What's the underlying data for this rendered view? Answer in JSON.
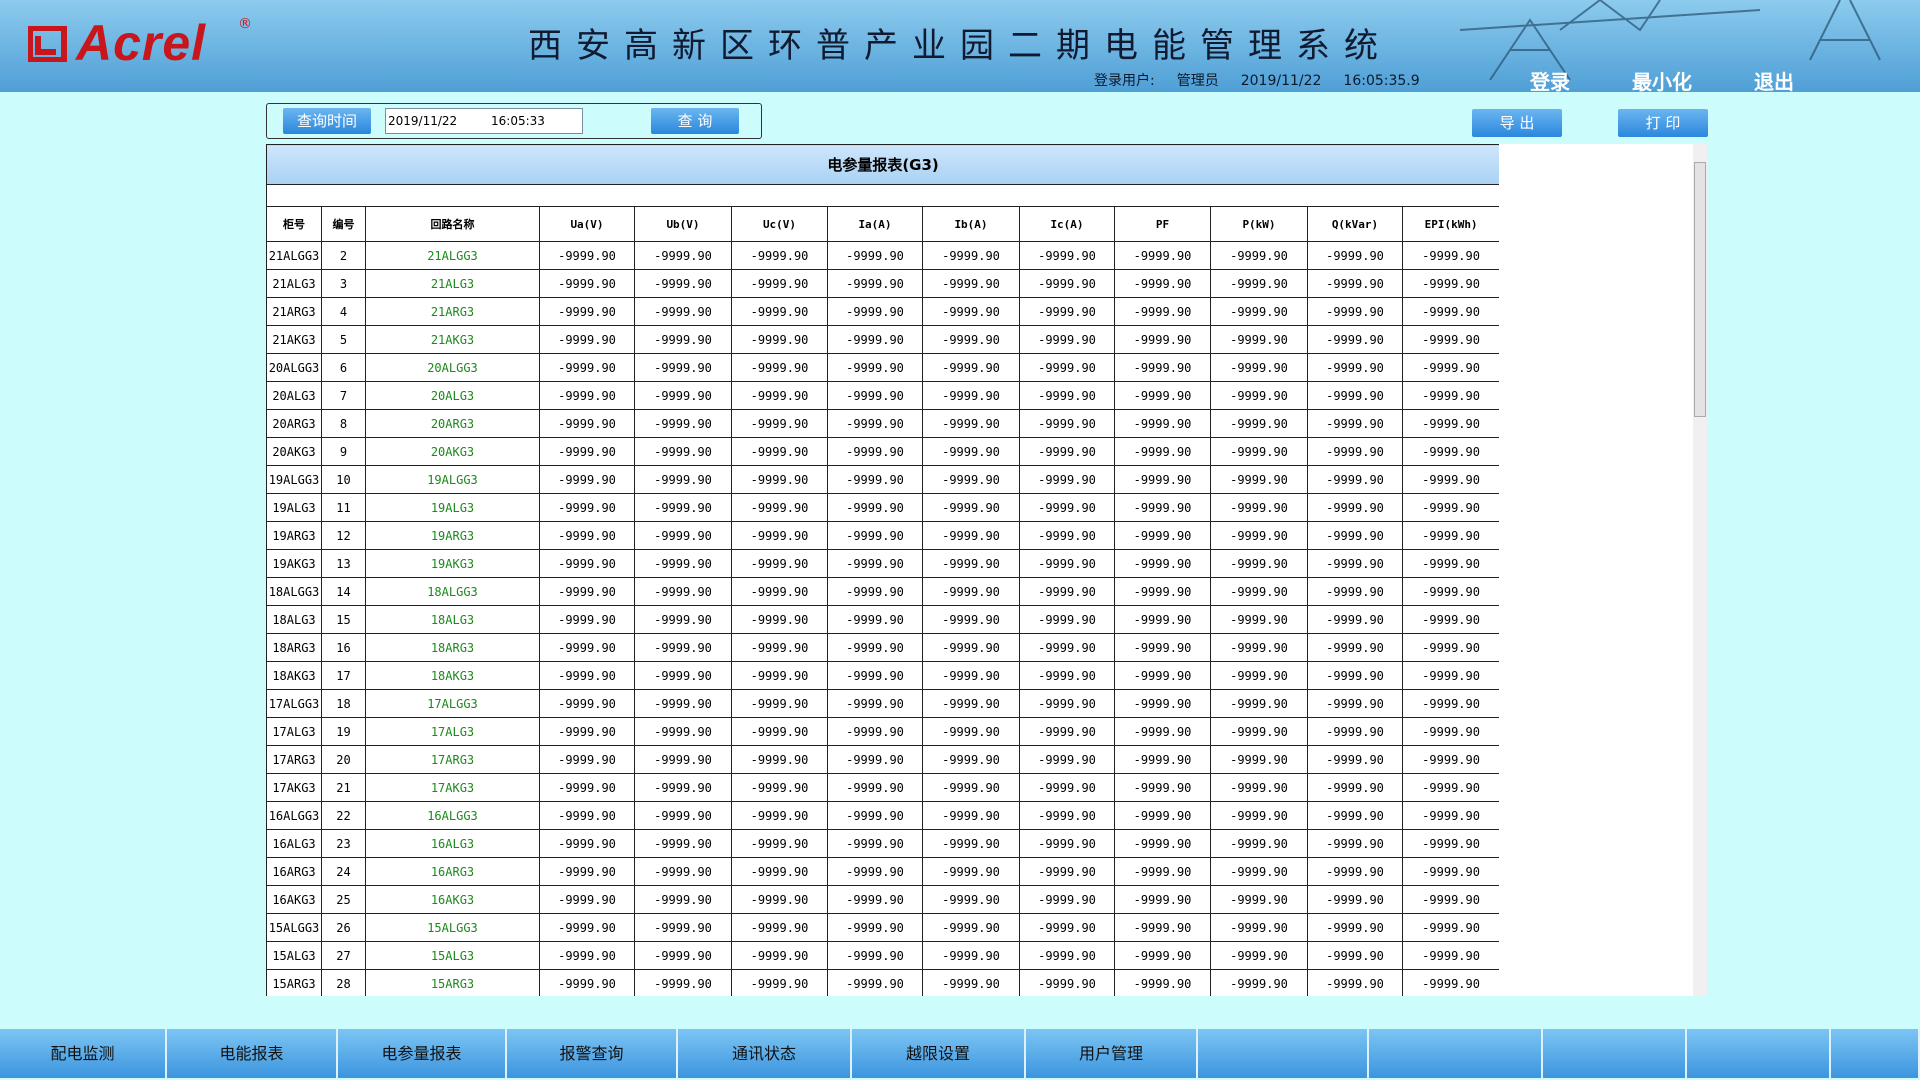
{
  "header": {
    "logo": "Acrel",
    "logo_mark": "®",
    "title": "西安高新区环普产业园二期电能管理系统",
    "user_label": "登录用户:",
    "user": "管理员",
    "date": "2019/11/22",
    "time": "16:05:35.9",
    "buttons": [
      "登录",
      "最小化",
      "退出"
    ]
  },
  "query": {
    "label": "查询时间",
    "date": "2019/11/22",
    "time": "16:05:33",
    "button": "查 询"
  },
  "actions": [
    "导 出",
    "打 印"
  ],
  "table": {
    "title": "电参量报表(G3)",
    "columns": [
      "柜号",
      "编号",
      "回路名称",
      "Ua(V)",
      "Ub(V)",
      "Uc(V)",
      "Ia(A)",
      "Ib(A)",
      "Ic(A)",
      "PF",
      "P(kW)",
      "Q(kVar)",
      "EPI(kWh)"
    ],
    "rows": [
      [
        "21ALGG3",
        2,
        "21ALGG3",
        "-9999.90",
        "-9999.90",
        "-9999.90",
        "-9999.90",
        "-9999.90",
        "-9999.90",
        "-9999.90",
        "-9999.90",
        "-9999.90",
        "-9999.90"
      ],
      [
        "21ALG3",
        3,
        "21ALG3",
        "-9999.90",
        "-9999.90",
        "-9999.90",
        "-9999.90",
        "-9999.90",
        "-9999.90",
        "-9999.90",
        "-9999.90",
        "-9999.90",
        "-9999.90"
      ],
      [
        "21ARG3",
        4,
        "21ARG3",
        "-9999.90",
        "-9999.90",
        "-9999.90",
        "-9999.90",
        "-9999.90",
        "-9999.90",
        "-9999.90",
        "-9999.90",
        "-9999.90",
        "-9999.90"
      ],
      [
        "21AKG3",
        5,
        "21AKG3",
        "-9999.90",
        "-9999.90",
        "-9999.90",
        "-9999.90",
        "-9999.90",
        "-9999.90",
        "-9999.90",
        "-9999.90",
        "-9999.90",
        "-9999.90"
      ],
      [
        "20ALGG3",
        6,
        "20ALGG3",
        "-9999.90",
        "-9999.90",
        "-9999.90",
        "-9999.90",
        "-9999.90",
        "-9999.90",
        "-9999.90",
        "-9999.90",
        "-9999.90",
        "-9999.90"
      ],
      [
        "20ALG3",
        7,
        "20ALG3",
        "-9999.90",
        "-9999.90",
        "-9999.90",
        "-9999.90",
        "-9999.90",
        "-9999.90",
        "-9999.90",
        "-9999.90",
        "-9999.90",
        "-9999.90"
      ],
      [
        "20ARG3",
        8,
        "20ARG3",
        "-9999.90",
        "-9999.90",
        "-9999.90",
        "-9999.90",
        "-9999.90",
        "-9999.90",
        "-9999.90",
        "-9999.90",
        "-9999.90",
        "-9999.90"
      ],
      [
        "20AKG3",
        9,
        "20AKG3",
        "-9999.90",
        "-9999.90",
        "-9999.90",
        "-9999.90",
        "-9999.90",
        "-9999.90",
        "-9999.90",
        "-9999.90",
        "-9999.90",
        "-9999.90"
      ],
      [
        "19ALGG3",
        10,
        "19ALGG3",
        "-9999.90",
        "-9999.90",
        "-9999.90",
        "-9999.90",
        "-9999.90",
        "-9999.90",
        "-9999.90",
        "-9999.90",
        "-9999.90",
        "-9999.90"
      ],
      [
        "19ALG3",
        11,
        "19ALG3",
        "-9999.90",
        "-9999.90",
        "-9999.90",
        "-9999.90",
        "-9999.90",
        "-9999.90",
        "-9999.90",
        "-9999.90",
        "-9999.90",
        "-9999.90"
      ],
      [
        "19ARG3",
        12,
        "19ARG3",
        "-9999.90",
        "-9999.90",
        "-9999.90",
        "-9999.90",
        "-9999.90",
        "-9999.90",
        "-9999.90",
        "-9999.90",
        "-9999.90",
        "-9999.90"
      ],
      [
        "19AKG3",
        13,
        "19AKG3",
        "-9999.90",
        "-9999.90",
        "-9999.90",
        "-9999.90",
        "-9999.90",
        "-9999.90",
        "-9999.90",
        "-9999.90",
        "-9999.90",
        "-9999.90"
      ],
      [
        "18ALGG3",
        14,
        "18ALGG3",
        "-9999.90",
        "-9999.90",
        "-9999.90",
        "-9999.90",
        "-9999.90",
        "-9999.90",
        "-9999.90",
        "-9999.90",
        "-9999.90",
        "-9999.90"
      ],
      [
        "18ALG3",
        15,
        "18ALG3",
        "-9999.90",
        "-9999.90",
        "-9999.90",
        "-9999.90",
        "-9999.90",
        "-9999.90",
        "-9999.90",
        "-9999.90",
        "-9999.90",
        "-9999.90"
      ],
      [
        "18ARG3",
        16,
        "18ARG3",
        "-9999.90",
        "-9999.90",
        "-9999.90",
        "-9999.90",
        "-9999.90",
        "-9999.90",
        "-9999.90",
        "-9999.90",
        "-9999.90",
        "-9999.90"
      ],
      [
        "18AKG3",
        17,
        "18AKG3",
        "-9999.90",
        "-9999.90",
        "-9999.90",
        "-9999.90",
        "-9999.90",
        "-9999.90",
        "-9999.90",
        "-9999.90",
        "-9999.90",
        "-9999.90"
      ],
      [
        "17ALGG3",
        18,
        "17ALGG3",
        "-9999.90",
        "-9999.90",
        "-9999.90",
        "-9999.90",
        "-9999.90",
        "-9999.90",
        "-9999.90",
        "-9999.90",
        "-9999.90",
        "-9999.90"
      ],
      [
        "17ALG3",
        19,
        "17ALG3",
        "-9999.90",
        "-9999.90",
        "-9999.90",
        "-9999.90",
        "-9999.90",
        "-9999.90",
        "-9999.90",
        "-9999.90",
        "-9999.90",
        "-9999.90"
      ],
      [
        "17ARG3",
        20,
        "17ARG3",
        "-9999.90",
        "-9999.90",
        "-9999.90",
        "-9999.90",
        "-9999.90",
        "-9999.90",
        "-9999.90",
        "-9999.90",
        "-9999.90",
        "-9999.90"
      ],
      [
        "17AKG3",
        21,
        "17AKG3",
        "-9999.90",
        "-9999.90",
        "-9999.90",
        "-9999.90",
        "-9999.90",
        "-9999.90",
        "-9999.90",
        "-9999.90",
        "-9999.90",
        "-9999.90"
      ],
      [
        "16ALGG3",
        22,
        "16ALGG3",
        "-9999.90",
        "-9999.90",
        "-9999.90",
        "-9999.90",
        "-9999.90",
        "-9999.90",
        "-9999.90",
        "-9999.90",
        "-9999.90",
        "-9999.90"
      ],
      [
        "16ALG3",
        23,
        "16ALG3",
        "-9999.90",
        "-9999.90",
        "-9999.90",
        "-9999.90",
        "-9999.90",
        "-9999.90",
        "-9999.90",
        "-9999.90",
        "-9999.90",
        "-9999.90"
      ],
      [
        "16ARG3",
        24,
        "16ARG3",
        "-9999.90",
        "-9999.90",
        "-9999.90",
        "-9999.90",
        "-9999.90",
        "-9999.90",
        "-9999.90",
        "-9999.90",
        "-9999.90",
        "-9999.90"
      ],
      [
        "16AKG3",
        25,
        "16AKG3",
        "-9999.90",
        "-9999.90",
        "-9999.90",
        "-9999.90",
        "-9999.90",
        "-9999.90",
        "-9999.90",
        "-9999.90",
        "-9999.90",
        "-9999.90"
      ],
      [
        "15ALGG3",
        26,
        "15ALGG3",
        "-9999.90",
        "-9999.90",
        "-9999.90",
        "-9999.90",
        "-9999.90",
        "-9999.90",
        "-9999.90",
        "-9999.90",
        "-9999.90",
        "-9999.90"
      ],
      [
        "15ALG3",
        27,
        "15ALG3",
        "-9999.90",
        "-9999.90",
        "-9999.90",
        "-9999.90",
        "-9999.90",
        "-9999.90",
        "-9999.90",
        "-9999.90",
        "-9999.90",
        "-9999.90"
      ],
      [
        "15ARG3",
        28,
        "15ARG3",
        "-9999.90",
        "-9999.90",
        "-9999.90",
        "-9999.90",
        "-9999.90",
        "-9999.90",
        "-9999.90",
        "-9999.90",
        "-9999.90",
        "-9999.90"
      ]
    ]
  },
  "nav": [
    "配电监测",
    "电能报表",
    "电参量报表",
    "报警查询",
    "通讯状态",
    "越限设置",
    "用户管理"
  ]
}
